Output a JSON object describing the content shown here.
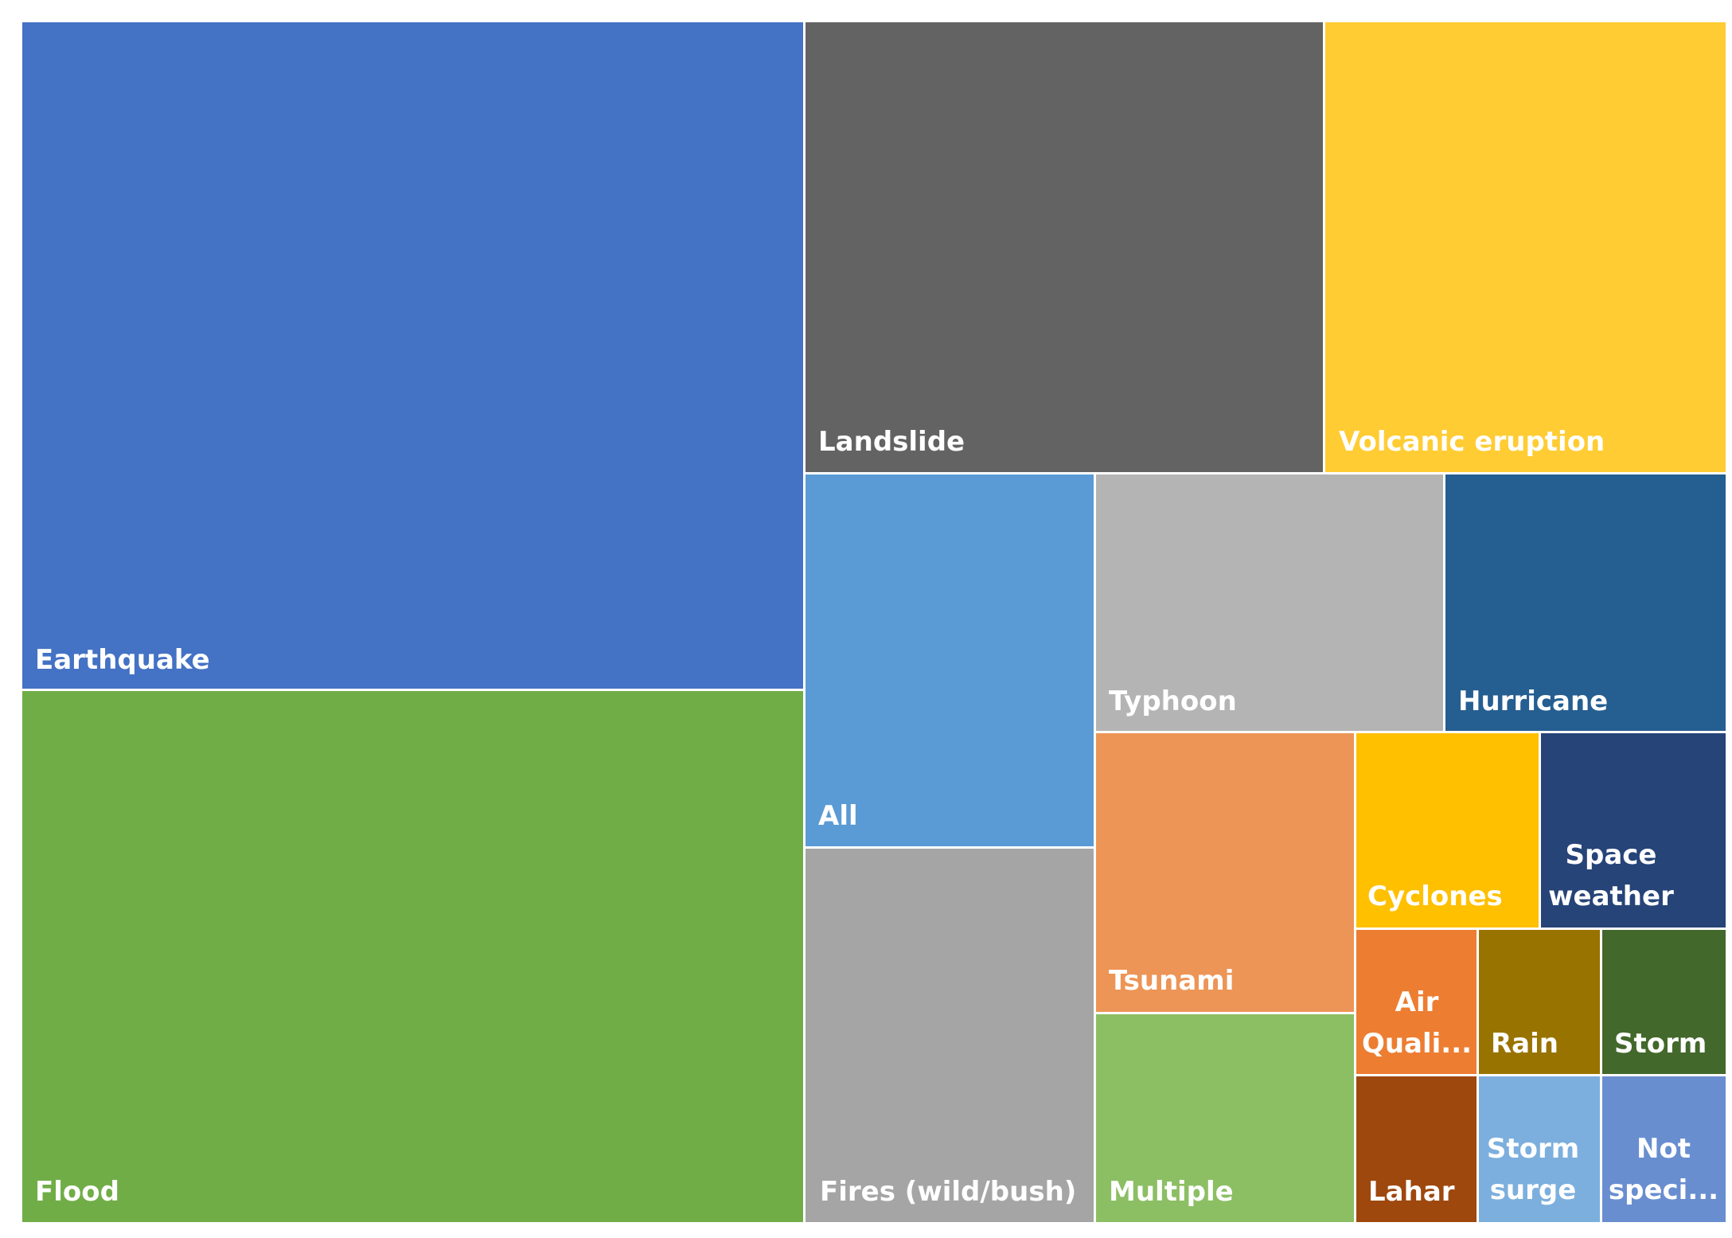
{
  "chart_data": {
    "type": "treemap",
    "title": "",
    "items": [
      {
        "label": "Earthquake",
        "value": 42.5,
        "color": "#4472C4"
      },
      {
        "label": "Flood",
        "value": 33.9,
        "color": "#70AD47"
      },
      {
        "label": "Landslide",
        "value": 19.0,
        "color": "#636363"
      },
      {
        "label": "Volcanic eruption",
        "value": 14.6,
        "color": "#FFCC33"
      },
      {
        "label": "All",
        "value": 8.8,
        "color": "#5B9BD5"
      },
      {
        "label": "Fires (wild/bush)",
        "value": 8.8,
        "color": "#A5A5A5"
      },
      {
        "label": "Typhoon",
        "value": 7.3,
        "color": "#B4B4B4"
      },
      {
        "label": "Hurricane",
        "value": 5.7,
        "color": "#255E91"
      },
      {
        "label": "Tsunami",
        "value": 5.2,
        "color": "#ED9556"
      },
      {
        "label": "Multiple",
        "value": 4.3,
        "color": "#8CBF64"
      },
      {
        "label": "Cyclones",
        "value": 2.9,
        "color": "#FFC000"
      },
      {
        "label": "Space weather",
        "value": 2.9,
        "color": "#264478"
      },
      {
        "label": "Air Quali...",
        "value": 1.4,
        "color": "#ED7D31"
      },
      {
        "label": "Rain",
        "value": 1.4,
        "color": "#997300"
      },
      {
        "label": "Storm",
        "value": 1.4,
        "color": "#43682B"
      },
      {
        "label": "Lahar",
        "value": 1.4,
        "color": "#9E480E"
      },
      {
        "label": "Storm surge",
        "value": 1.4,
        "color": "#7CAFDD"
      },
      {
        "label": "Not speci...",
        "value": 1.4,
        "color": "#698ED0"
      }
    ]
  }
}
